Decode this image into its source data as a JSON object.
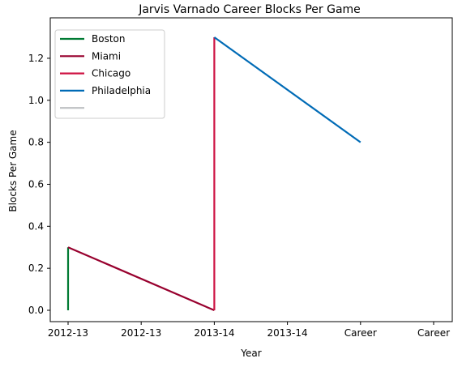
{
  "chart_data": {
    "type": "line",
    "title": "Jarvis Varnado Career Blocks Per Game",
    "xlabel": "Year",
    "ylabel": "Blocks Per Game",
    "x_tick_labels": [
      "2012-13",
      "2012-13",
      "2013-14",
      "2013-14",
      "Career",
      "Career"
    ],
    "ylim": [
      -0.065,
      1.365
    ],
    "y_ticks": [
      "0.0",
      "0.2",
      "0.4",
      "0.6",
      "0.8",
      "1.0",
      "1.2"
    ],
    "grid": false,
    "legend_placement": "upper-left",
    "series": [
      {
        "name": "Boston",
        "color": "#007A33",
        "points": [
          {
            "x": 0,
            "y": 0.0
          },
          {
            "x": 0,
            "y": 0.3
          }
        ]
      },
      {
        "name": "Miami",
        "color": "#98002E",
        "points": [
          {
            "x": 0,
            "y": 0.3
          },
          {
            "x": 2,
            "y": 0.0
          }
        ]
      },
      {
        "name": "Chicago",
        "color": "#CE1141",
        "points": [
          {
            "x": 2,
            "y": 0.0
          },
          {
            "x": 2,
            "y": 1.3
          }
        ]
      },
      {
        "name": "Philadelphia",
        "color": "#006BB6",
        "points": [
          {
            "x": 2,
            "y": 1.3
          },
          {
            "x": 4,
            "y": 0.8
          }
        ]
      },
      {
        "name": "",
        "color": "#BEC0C2",
        "points": []
      }
    ]
  }
}
